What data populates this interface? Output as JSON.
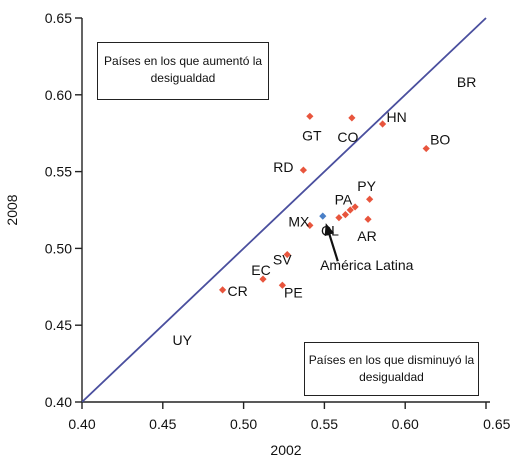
{
  "chart_data": {
    "type": "scatter",
    "title": "",
    "xlabel": "2002",
    "ylabel": "2008",
    "xlim": [
      0.4,
      0.65
    ],
    "ylim": [
      0.4,
      0.65
    ],
    "x_ticks": [
      "0.40",
      "0.45",
      "0.50",
      "0.55",
      "0.60",
      "0.65'e"
    ],
    "y_ticks": [
      "0.40",
      "0.45",
      "0.50",
      "0.55",
      "0.60",
      "0.65"
    ],
    "grid": false,
    "reference_line": {
      "from": [
        0.4,
        0.4
      ],
      "to": [
        0.65,
        0.65
      ],
      "color": "#4a4f9e"
    },
    "point_color": "#e8553d",
    "highlight_color": "#4a7fc7",
    "points": [
      {
        "label": "GT",
        "x": 0.541,
        "y": 0.586
      },
      {
        "label": "CO",
        "x": 0.567,
        "y": 0.585
      },
      {
        "label": "HN",
        "x": 0.586,
        "y": 0.581
      },
      {
        "label": "BO",
        "x": 0.613,
        "y": 0.565
      },
      {
        "label": "RD",
        "x": 0.537,
        "y": 0.551
      },
      {
        "label": "PA",
        "x": 0.563,
        "y": 0.522
      },
      {
        "label": "",
        "x": 0.566,
        "y": 0.525
      },
      {
        "label": "",
        "x": 0.569,
        "y": 0.527
      },
      {
        "label": "PY",
        "x": 0.578,
        "y": 0.532
      },
      {
        "label": "CL",
        "x": 0.559,
        "y": 0.52
      },
      {
        "label": "AR",
        "x": 0.577,
        "y": 0.519
      },
      {
        "label": "MX",
        "x": 0.541,
        "y": 0.515
      },
      {
        "label": "SV",
        "x": 0.527,
        "y": 0.496
      },
      {
        "label": "EC",
        "x": 0.512,
        "y": 0.48
      },
      {
        "label": "PE",
        "x": 0.524,
        "y": 0.476
      },
      {
        "label": "CR",
        "x": 0.487,
        "y": 0.473
      },
      {
        "label": "América Latina",
        "x": 0.549,
        "y": 0.521,
        "highlight": true
      }
    ],
    "unmarked_labels": [
      {
        "label": "BR",
        "x": 0.638,
        "y": 0.605
      },
      {
        "label": "UY",
        "x": 0.462,
        "y": 0.437
      }
    ],
    "annotations": {
      "upper_box": {
        "line1": "Países en los que aumentó la",
        "line2": "desigualdad"
      },
      "lower_box": {
        "line1": "Países en los que disminuyó la",
        "line2": "desigualdad"
      }
    }
  }
}
